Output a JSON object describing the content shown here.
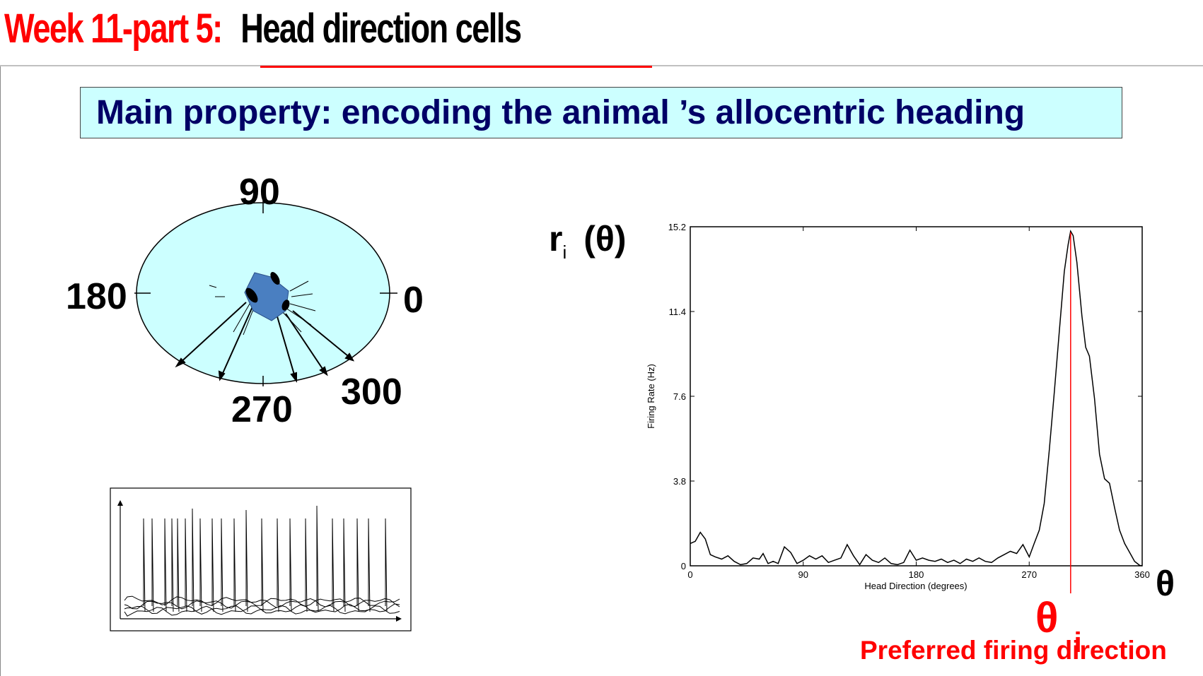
{
  "title": {
    "part": "Week 11-part 5:",
    "topic": "Head direction cells"
  },
  "subtitle_box": "Main property: encoding the animal ’s allocentric heading",
  "compass": {
    "labels": {
      "north": "90",
      "west": "180",
      "east": "0",
      "south": "270",
      "southeast": "300"
    },
    "colors": {
      "ellipse_fill": "#ccffff",
      "rat": "#4a7fc1"
    }
  },
  "plot": {
    "y_symbol_main": "r",
    "y_symbol_sub": "i",
    "y_symbol_arg": "(θ)",
    "x_symbol": "θ",
    "preferred_symbol": "θ",
    "preferred_sub": "i",
    "preferred_caption": "Preferred firing direction",
    "accent": "#ff0000"
  },
  "chart_data": {
    "type": "line",
    "xlabel": "Head Direction (degrees)",
    "ylabel": "Firing Rate (Hz)",
    "xlim": [
      0,
      360
    ],
    "ylim": [
      0,
      15.2
    ],
    "xticks": [
      0,
      90,
      180,
      270,
      360
    ],
    "ytick_labels": [
      "0",
      "3.8",
      "7.6",
      "11.4",
      "15.2"
    ],
    "ytick_values": [
      0,
      3.8,
      7.6,
      11.4,
      15.2
    ],
    "grid": false,
    "preferred_direction": 303,
    "series": [
      {
        "x": [
          0,
          4,
          8,
          12,
          16,
          20,
          25,
          30,
          35,
          40,
          45,
          50,
          55,
          58,
          62,
          66,
          70,
          75,
          80,
          85,
          90,
          95,
          100,
          105,
          110,
          115,
          120,
          125,
          130,
          135,
          140,
          145,
          150,
          155,
          160,
          165,
          170,
          175,
          180,
          185,
          190,
          195,
          200,
          205,
          210,
          215,
          220,
          225,
          230,
          235,
          240,
          245,
          250,
          255,
          260,
          265,
          270,
          274,
          278,
          282,
          286,
          290,
          294,
          298,
          301,
          303,
          305,
          308,
          312,
          315,
          318,
          322,
          326,
          330,
          334,
          338,
          342,
          346,
          350,
          354,
          358,
          360
        ],
        "y": [
          1.0,
          1.1,
          1.5,
          1.2,
          0.5,
          0.4,
          0.3,
          0.45,
          0.2,
          0.05,
          0.1,
          0.35,
          0.3,
          0.55,
          0.1,
          0.2,
          0.1,
          0.85,
          0.6,
          0.1,
          0.25,
          0.45,
          0.3,
          0.45,
          0.15,
          0.25,
          0.35,
          0.95,
          0.45,
          0.05,
          0.5,
          0.25,
          0.15,
          0.35,
          0.1,
          0.05,
          0.15,
          0.7,
          0.25,
          0.35,
          0.25,
          0.2,
          0.3,
          0.15,
          0.25,
          0.1,
          0.3,
          0.2,
          0.35,
          0.2,
          0.15,
          0.35,
          0.5,
          0.65,
          0.55,
          0.95,
          0.4,
          1.0,
          1.6,
          2.8,
          5.2,
          7.8,
          10.5,
          13.2,
          14.4,
          15.0,
          14.8,
          13.6,
          11.2,
          9.8,
          9.4,
          7.5,
          5.0,
          3.9,
          3.7,
          2.6,
          1.6,
          1.0,
          0.6,
          0.2,
          0.02,
          0.0
        ]
      }
    ]
  }
}
